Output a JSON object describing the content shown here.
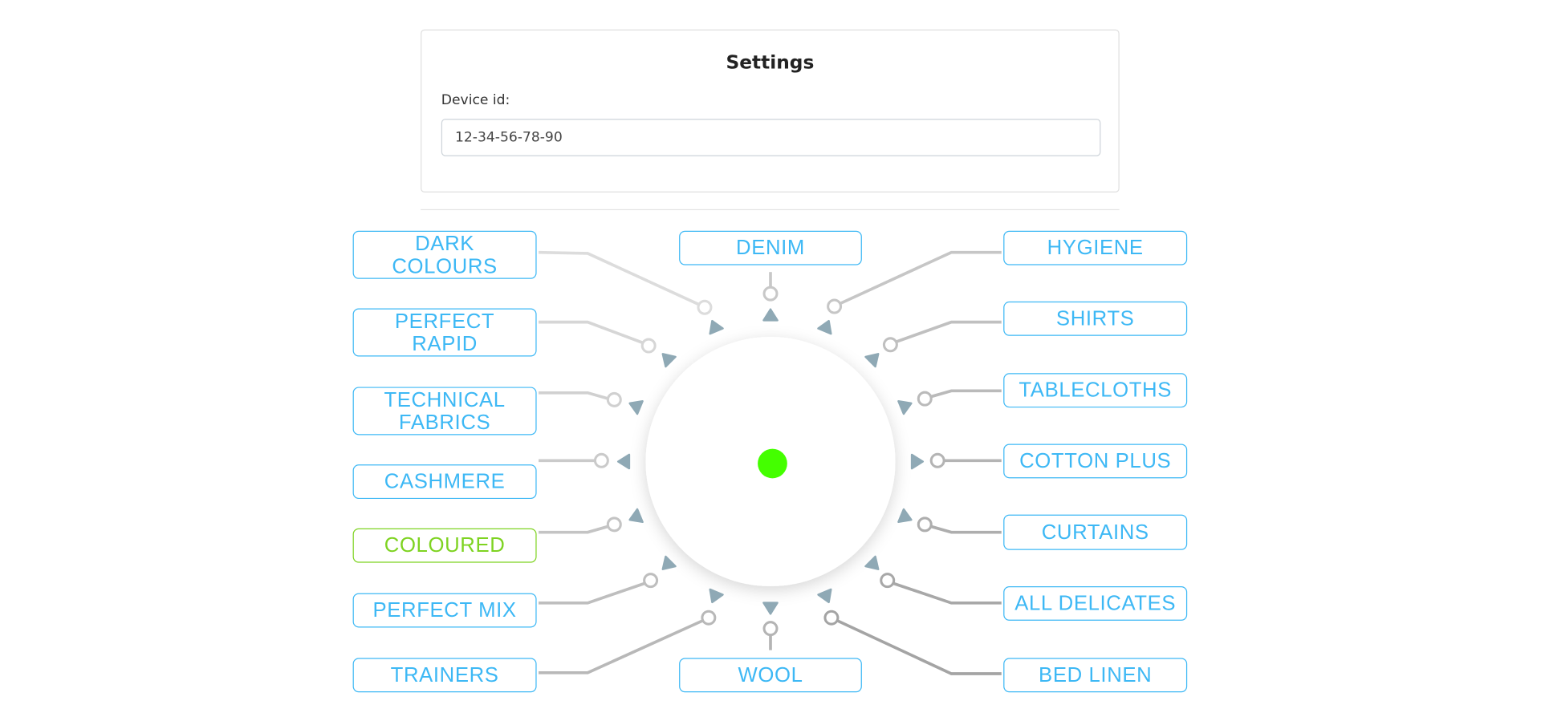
{
  "settings": {
    "title": "Settings",
    "device_label": "Device id:",
    "device_value": "12-34-56-78-90"
  },
  "programs": [
    {
      "label": "DARK COLOURS",
      "selected": false
    },
    {
      "label": "PERFECT RAPID",
      "selected": false
    },
    {
      "label": "TECHNICAL FABRICS",
      "selected": false
    },
    {
      "label": "CASHMERE",
      "selected": false
    },
    {
      "label": "COLOURED",
      "selected": true
    },
    {
      "label": "PERFECT MIX",
      "selected": false
    },
    {
      "label": "TRAINERS",
      "selected": false
    },
    {
      "label": "DENIM",
      "selected": false
    },
    {
      "label": "WOOL",
      "selected": false
    },
    {
      "label": "HYGIENE",
      "selected": false
    },
    {
      "label": "SHIRTS",
      "selected": false
    },
    {
      "label": "TABLECLOTHS",
      "selected": false
    },
    {
      "label": "COTTON PLUS",
      "selected": false
    },
    {
      "label": "CURTAINS",
      "selected": false
    },
    {
      "label": "ALL DELICATES",
      "selected": false
    },
    {
      "label": "BED LINEN",
      "selected": false
    }
  ],
  "colors": {
    "label": "#3db8f5",
    "selected": "#7ed321",
    "indicator": "#44ff00",
    "arrow": "#8fa9b5"
  },
  "dial": {
    "indicator": "green-dot"
  }
}
